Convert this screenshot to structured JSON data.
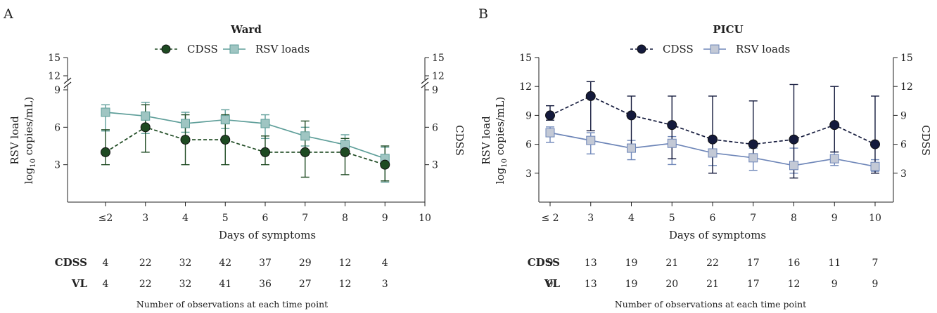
{
  "chart_data": [
    {
      "type": "line",
      "panel_label": "A",
      "title": "Ward",
      "xlabel": "Days of symptoms",
      "ylabel_left_line1": "RSV load",
      "ylabel_left_line2_pre": "log",
      "ylabel_left_line2_sub": "10",
      "ylabel_left_line2_post": " copies/mL)",
      "ylabel_right": "CDSS",
      "x_ticks": [
        "≤2",
        "3",
        "4",
        "5",
        "6",
        "7",
        "8",
        "9",
        "10"
      ],
      "y_ticks_left": [
        "3",
        "6",
        "9",
        "12",
        "15"
      ],
      "y_ticks_right": [
        "3",
        "6",
        "9",
        "12",
        "15"
      ],
      "broken_axis": true,
      "series": [
        {
          "name": "CDSS",
          "color": "#1e4a22",
          "marker": "circle",
          "linestyle": "dashed",
          "x": [
            2,
            3,
            4,
            5,
            6,
            7,
            8,
            9
          ],
          "y": [
            4,
            6,
            5,
            5,
            4,
            4,
            4,
            3
          ],
          "err_low": [
            3,
            4,
            3,
            3,
            3,
            2,
            2.2,
            1.7
          ],
          "err_high": [
            5.8,
            7.8,
            7,
            7,
            5.3,
            6.5,
            5.1,
            4.5
          ]
        },
        {
          "name": "RSV loads",
          "color": "#5e9e99",
          "marker": "square",
          "linestyle": "solid",
          "x": [
            2,
            3,
            4,
            5,
            6,
            7,
            8,
            9
          ],
          "y": [
            7.2,
            6.9,
            6.3,
            6.6,
            6.3,
            5.3,
            4.6,
            3.5
          ],
          "err_low": [
            5.7,
            5.5,
            5.6,
            5.9,
            5.1,
            4.5,
            3.8,
            1.6
          ],
          "err_high": [
            7.8,
            8,
            7.2,
            7.4,
            7,
            6,
            5.4,
            4.4
          ]
        }
      ],
      "counts": {
        "rows": [
          {
            "label": "CDSS",
            "values": [
              "4",
              "22",
              "32",
              "42",
              "37",
              "29",
              "12",
              "4"
            ]
          },
          {
            "label": "VL",
            "values": [
              "4",
              "22",
              "32",
              "41",
              "36",
              "27",
              "12",
              "3"
            ]
          }
        ],
        "caption": "Number of observations at each time point"
      }
    },
    {
      "type": "line",
      "panel_label": "B",
      "title": "PICU",
      "xlabel": "Days of symptoms",
      "ylabel_left_line1": "RSV load",
      "ylabel_left_line2_pre": "log",
      "ylabel_left_line2_sub": "10",
      "ylabel_left_line2_post": " copies/mL)",
      "ylabel_right": "CDSS",
      "x_ticks": [
        "≤ 2",
        "3",
        "4",
        "5",
        "6",
        "7",
        "8",
        "9",
        "10"
      ],
      "y_ticks_left": [
        "3",
        "6",
        "9",
        "12",
        "15"
      ],
      "y_ticks_right": [
        "3",
        "6",
        "9",
        "12",
        "15"
      ],
      "broken_axis": false,
      "series": [
        {
          "name": "CDSS",
          "color": "#141a3c",
          "marker": "circle",
          "linestyle": "dashed",
          "x": [
            2,
            3,
            4,
            5,
            6,
            7,
            8,
            9,
            10
          ],
          "y": [
            9,
            11,
            9,
            8,
            6.5,
            6,
            6.5,
            8,
            6
          ],
          "err_low": [
            8.5,
            7.4,
            6,
            4.5,
            3,
            4.8,
            2.5,
            5.2,
            3
          ],
          "err_high": [
            10,
            12.5,
            11,
            11,
            11,
            10.5,
            12.2,
            12,
            11
          ]
        },
        {
          "name": "RSV loads",
          "color": "#6e86b8",
          "marker": "square",
          "linestyle": "solid",
          "x": [
            2,
            3,
            4,
            5,
            6,
            7,
            8,
            9,
            10
          ],
          "y": [
            7.2,
            6.4,
            5.6,
            6.1,
            5.1,
            4.6,
            3.8,
            4.5,
            3.7
          ],
          "err_low": [
            6.2,
            5,
            4.4,
            3.9,
            3.8,
            3.3,
            3,
            3.8,
            3.2
          ],
          "err_high": [
            7.8,
            7.2,
            6.4,
            6.8,
            6.3,
            5.6,
            5.6,
            5.2,
            4.4
          ]
        }
      ],
      "counts": {
        "rows": [
          {
            "label": "CDSS",
            "values": [
              "9",
              "13",
              "19",
              "21",
              "22",
              "17",
              "16",
              "11",
              "7"
            ]
          },
          {
            "label": "VL",
            "values": [
              "9",
              "13",
              "19",
              "20",
              "21",
              "17",
              "12",
              "9",
              "9"
            ]
          }
        ],
        "caption": "Number of observations at each time point"
      }
    }
  ]
}
